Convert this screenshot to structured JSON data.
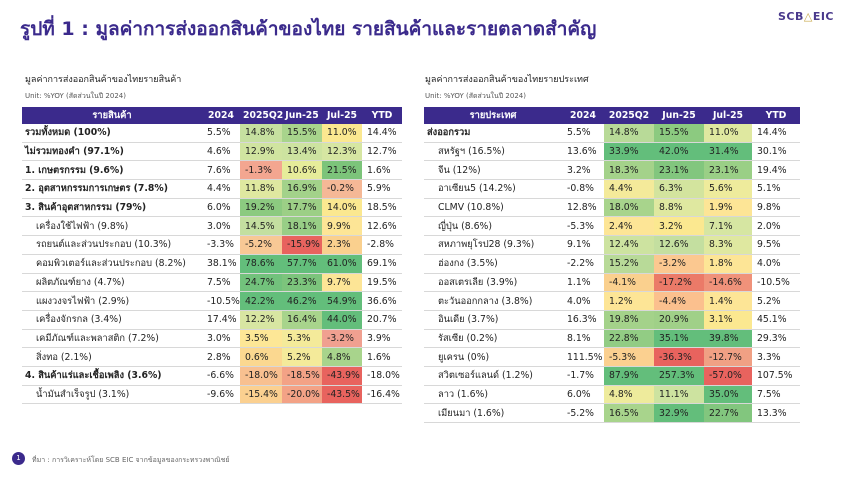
{
  "title": "รูปที่ 1 : มูลค่าการส่งออกสินค้าของไทย รายสินค้าและรายตลาดสำคัญ",
  "logo": {
    "main": "SCB",
    "accent": "EIC"
  },
  "left": {
    "subtitle": "มูลค่าการส่งออกสินค้าของไทยรายสินค้า",
    "unit": "Unit: %YOY (สัดส่วนในปี 2024)",
    "headers": [
      "รายสินค้า",
      "2024",
      "2025Q2",
      "Jun-25",
      "Jul-25",
      "YTD"
    ],
    "rows": [
      {
        "label": "รวมทั้งหมด (100%)",
        "style": "b",
        "values": [
          "5.5%",
          "14.8%",
          "15.5%",
          "11.0%",
          "14.4%"
        ],
        "colors": [
          "",
          "#c6e0a0",
          "#a8d48c",
          "#fbe890",
          ""
        ]
      },
      {
        "label": "ไม่รวมทองคำ (97.1%)",
        "style": "b",
        "values": [
          "4.6%",
          "12.9%",
          "13.4%",
          "12.3%",
          "12.7%"
        ],
        "colors": [
          "",
          "#d0e4a0",
          "#cde3a0",
          "#d6e6a2",
          ""
        ]
      },
      {
        "label": "1. เกษตรกรรม (9.6%)",
        "style": "b",
        "values": [
          "7.6%",
          "-1.3%",
          "10.6%",
          "21.5%",
          "1.6%"
        ],
        "colors": [
          "",
          "#f3a690",
          "#e6ec9a",
          "#7cc47a",
          ""
        ]
      },
      {
        "label": "2. อุตสาหกรรมการเกษตร (7.8%)",
        "style": "b",
        "values": [
          "4.4%",
          "11.8%",
          "16.9%",
          "-0.2%",
          "5.9%"
        ],
        "colors": [
          "",
          "#dfe8a0",
          "#a3d28a",
          "#f5b896",
          ""
        ]
      },
      {
        "label": "3. สินค้าอุตสาหกรรม (79%)",
        "style": "b",
        "values": [
          "6.0%",
          "19.2%",
          "17.7%",
          "14.0%",
          "18.5%"
        ],
        "colors": [
          "",
          "#8cca80",
          "#9ccf86",
          "#fbe890",
          ""
        ]
      },
      {
        "label": "เครื่องใช้ไฟฟ้า (9.8%)",
        "style": "i",
        "values": [
          "3.0%",
          "14.5%",
          "18.1%",
          "9.9%",
          "12.6%"
        ],
        "colors": [
          "",
          "#c4dfa0",
          "#98ce86",
          "#fde596",
          ""
        ]
      },
      {
        "label": "รถยนต์และส่วนประกอบ (10.3%)",
        "style": "i",
        "values": [
          "-3.3%",
          "-5.2%",
          "-15.9%",
          "2.3%",
          "-2.8%"
        ],
        "colors": [
          "",
          "#f8c895",
          "#e8635e",
          "#fad08e",
          ""
        ]
      },
      {
        "label": "คอมพิวเตอร์และส่วนประกอบ (8.2%)",
        "style": "i",
        "values": [
          "38.1%",
          "78.6%",
          "57.7%",
          "61.0%",
          "69.1%"
        ],
        "colors": [
          "",
          "#63be7b",
          "#63be7b",
          "#63be7b",
          ""
        ]
      },
      {
        "label": "ผลิตภัณฑ์ยาง (4.7%)",
        "style": "i",
        "values": [
          "7.5%",
          "24.7%",
          "23.3%",
          "9.7%",
          "19.5%"
        ],
        "colors": [
          "",
          "#72c27c",
          "#7cc47c",
          "#fde596",
          ""
        ]
      },
      {
        "label": "แผงวงจรไฟฟ้า (2.9%)",
        "style": "i",
        "values": [
          "-10.5%",
          "42.2%",
          "46.2%",
          "54.9%",
          "36.6%"
        ],
        "colors": [
          "",
          "#63be7b",
          "#63be7b",
          "#63be7b",
          ""
        ]
      },
      {
        "label": "เครื่องจักรกล (3.4%)",
        "style": "i",
        "values": [
          "17.4%",
          "12.2%",
          "16.4%",
          "44.0%",
          "20.7%"
        ],
        "colors": [
          "",
          "#d8e6a2",
          "#a8d48c",
          "#63be7b",
          ""
        ]
      },
      {
        "label": "เคมีภัณฑ์และพลาสติก (7.2%)",
        "style": "i",
        "values": [
          "3.0%",
          "3.5%",
          "5.3%",
          "-3.2%",
          "3.9%"
        ],
        "colors": [
          "",
          "#fde796",
          "#f4ea9a",
          "#f0a090",
          ""
        ]
      },
      {
        "label": "สิ่งทอ (2.1%)",
        "style": "i",
        "values": [
          "2.8%",
          "0.6%",
          "5.2%",
          "4.8%",
          "1.6%"
        ],
        "colors": [
          "",
          "#fbd890",
          "#f4ea9a",
          "#a8d48c",
          ""
        ]
      },
      {
        "label": "4. สินค้าแร่และเชื้อเพลิง (3.6%)",
        "style": "b",
        "values": [
          "-6.6%",
          "-18.0%",
          "-18.5%",
          "-43.9%",
          "-18.0%"
        ],
        "colors": [
          "",
          "#f8c090",
          "#f3a286",
          "#e8635e",
          ""
        ]
      },
      {
        "label": "น้ำมันสำเร็จรูป (3.1%)",
        "style": "i",
        "values": [
          "-9.6%",
          "-15.4%",
          "-20.0%",
          "-43.5%",
          "-16.4%"
        ],
        "colors": [
          "",
          "#fbd090",
          "#f3a286",
          "#e8635e",
          ""
        ]
      }
    ]
  },
  "right": {
    "subtitle": "มูลค่าการส่งออกสินค้าของไทยรายประเทศ",
    "unit": "Unit: %YOY (สัดส่วนในปี 2024)",
    "headers": [
      "รายประเทศ",
      "2024",
      "2025Q2",
      "Jun-25",
      "Jul-25",
      "YTD"
    ],
    "rows": [
      {
        "label": "ส่งออกรวม",
        "style": "b",
        "values": [
          "5.5%",
          "14.8%",
          "15.5%",
          "11.0%",
          "14.4%"
        ],
        "colors": [
          "",
          "#b8da98",
          "#8cca80",
          "#dfe8a0",
          ""
        ]
      },
      {
        "label": "สหรัฐฯ (16.5%)",
        "style": "i",
        "values": [
          "13.6%",
          "33.9%",
          "42.0%",
          "31.4%",
          "30.1%"
        ],
        "colors": [
          "",
          "#63be7b",
          "#63be7b",
          "#63be7b",
          ""
        ]
      },
      {
        "label": "จีน (12%)",
        "style": "i",
        "values": [
          "3.2%",
          "18.3%",
          "23.1%",
          "23.1%",
          "19.4%"
        ],
        "colors": [
          "",
          "#a4d28a",
          "#82c67e",
          "#9acf86",
          ""
        ]
      },
      {
        "label": "อาเซียน5 (14.2%)",
        "style": "i",
        "values": [
          "-0.8%",
          "4.4%",
          "6.3%",
          "5.6%",
          "5.1%"
        ],
        "colors": [
          "",
          "#f4ea9a",
          "#d3e49e",
          "#eeeb9c",
          ""
        ]
      },
      {
        "label": "CLMV (10.8%)",
        "style": "i",
        "values": [
          "12.8%",
          "18.0%",
          "8.8%",
          "1.9%",
          "9.8%"
        ],
        "colors": [
          "",
          "#a8d48c",
          "#dfe8a0",
          "#fde596",
          ""
        ]
      },
      {
        "label": "ญี่ปุ่น (8.6%)",
        "style": "i",
        "values": [
          "-5.3%",
          "2.4%",
          "3.2%",
          "7.1%",
          "2.0%"
        ],
        "colors": [
          "",
          "#fde596",
          "#fbe890",
          "#d6e6a2",
          ""
        ]
      },
      {
        "label": "สหภาพยุโรป28 (9.3%)",
        "style": "i",
        "values": [
          "9.1%",
          "12.4%",
          "12.6%",
          "8.3%",
          "9.5%"
        ],
        "colors": [
          "",
          "#cde3a0",
          "#c4dfa0",
          "#dfe8a0",
          ""
        ]
      },
      {
        "label": "ฮ่องกง (3.5%)",
        "style": "i",
        "values": [
          "-2.2%",
          "15.2%",
          "-3.2%",
          "1.8%",
          "4.0%"
        ],
        "colors": [
          "",
          "#b8da98",
          "#fbc890",
          "#fde596",
          ""
        ]
      },
      {
        "label": "ออสเตรเลีย (3.9%)",
        "style": "i",
        "values": [
          "1.1%",
          "-4.1%",
          "-17.2%",
          "-14.6%",
          "-10.5%"
        ],
        "colors": [
          "",
          "#fad08e",
          "#eb7a68",
          "#f0927a",
          ""
        ]
      },
      {
        "label": "ตะวันออกกลาง (3.8%)",
        "style": "i",
        "values": [
          "4.0%",
          "1.2%",
          "-4.4%",
          "1.4%",
          "5.2%"
        ],
        "colors": [
          "",
          "#fde596",
          "#fbc08e",
          "#fde596",
          ""
        ]
      },
      {
        "label": "อินเดีย (3.7%)",
        "style": "i",
        "values": [
          "16.3%",
          "19.8%",
          "20.9%",
          "3.1%",
          "45.1%"
        ],
        "colors": [
          "",
          "#a4d28a",
          "#a0d088",
          "#fbe890",
          ""
        ]
      },
      {
        "label": "รัสเซีย (0.2%)",
        "style": "i",
        "values": [
          "8.1%",
          "22.8%",
          "35.1%",
          "39.8%",
          "29.3%"
        ],
        "colors": [
          "",
          "#92cc84",
          "#63be7b",
          "#63be7b",
          ""
        ]
      },
      {
        "label": "ยูเครน (0%)",
        "style": "i",
        "values": [
          "111.5%",
          "-5.3%",
          "-36.3%",
          "-12.7%",
          "3.3%"
        ],
        "colors": [
          "",
          "#fbd090",
          "#e8635e",
          "#f0a084",
          ""
        ]
      },
      {
        "label": "สวิตเซอร์แลนด์ (1.2%)",
        "style": "i",
        "values": [
          "-1.7%",
          "87.9%",
          "257.3%",
          "-57.0%",
          "107.5%"
        ],
        "colors": [
          "",
          "#63be7b",
          "#63be7b",
          "#e8635e",
          ""
        ]
      },
      {
        "label": "ลาว (1.6%)",
        "style": "i",
        "values": [
          "6.0%",
          "4.8%",
          "11.1%",
          "35.0%",
          "7.5%"
        ],
        "colors": [
          "",
          "#eeeb9c",
          "#cde3a0",
          "#63be7b",
          ""
        ]
      },
      {
        "label": "เมียนมา (1.6%)",
        "style": "i",
        "values": [
          "-5.2%",
          "16.5%",
          "32.9%",
          "22.7%",
          "13.3%"
        ],
        "colors": [
          "",
          "#a8d48c",
          "#63be7b",
          "#82c67e",
          ""
        ]
      }
    ]
  },
  "footer": {
    "page": "1",
    "source": "ที่มา : การวิเคราะห์โดย SCB EIC จากข้อมูลของกระทรวงพาณิชย์"
  }
}
